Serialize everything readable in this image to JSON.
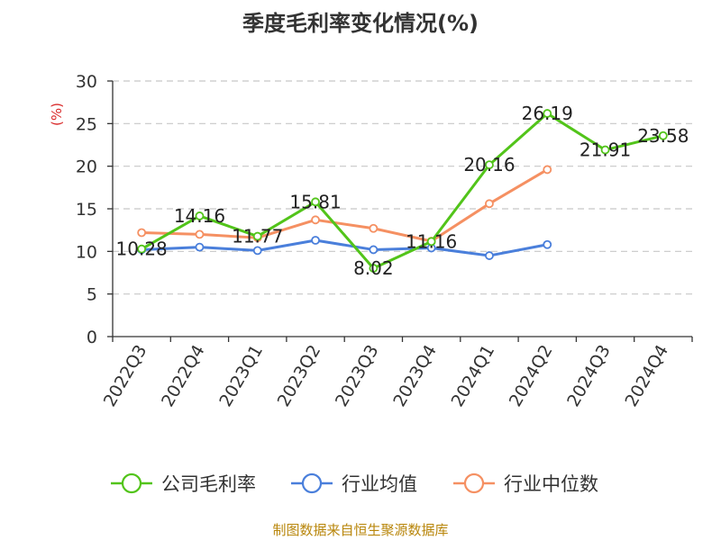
{
  "chart_data": {
    "type": "line",
    "title": "季度毛利率变化情况(%)",
    "ylabel": "(%)",
    "xlabel": "",
    "ylim": [
      0,
      30
    ],
    "yticks": [
      0,
      5,
      10,
      15,
      20,
      25,
      30
    ],
    "grid": true,
    "legend_position": "bottom",
    "categories": [
      "2022Q3",
      "2022Q4",
      "2023Q1",
      "2023Q2",
      "2023Q3",
      "2023Q4",
      "2024Q1",
      "2024Q2",
      "2024Q3",
      "2024Q4"
    ],
    "series": [
      {
        "name": "公司毛利率",
        "color": "#52c41a",
        "values": [
          10.28,
          14.16,
          11.77,
          15.81,
          8.02,
          11.16,
          20.16,
          26.19,
          21.91,
          23.58
        ],
        "show_labels": true
      },
      {
        "name": "行业均值",
        "color": "#4a7fdb",
        "values": [
          10.2,
          10.5,
          10.1,
          11.3,
          10.2,
          10.4,
          9.5,
          10.8,
          null,
          null
        ],
        "show_labels": false
      },
      {
        "name": "行业中位数",
        "color": "#f59062",
        "values": [
          12.2,
          12.0,
          11.6,
          13.7,
          12.7,
          11.2,
          15.6,
          19.6,
          null,
          null
        ],
        "show_labels": false
      }
    ]
  },
  "footer": {
    "source": "制图数据来自恒生聚源数据库"
  }
}
